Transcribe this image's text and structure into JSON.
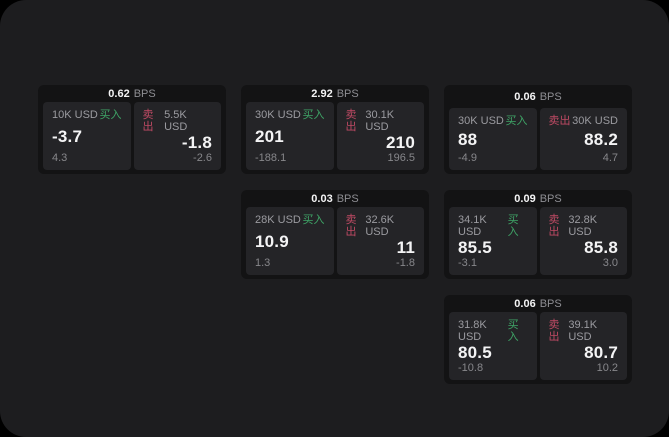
{
  "page": {
    "background": "#000000",
    "surface": "#1d1d1f"
  },
  "colors": {
    "card_bg": "#131314",
    "panel_bg": "#242427",
    "text_primary": "#f4f4f5",
    "text_muted": "#9b9ba0",
    "buy_green": "#3fa567",
    "sell_red": "#bf4a64"
  },
  "labels": {
    "bps": "BPS",
    "buy": "买入",
    "sell": "卖出"
  },
  "cards": [
    {
      "bps": "0.62",
      "col": 1,
      "row": 1,
      "buy": {
        "amount": "10K USD",
        "value": "-3.7",
        "delta": "4.3"
      },
      "sell": {
        "amount": "5.5K USD",
        "value": "-1.8",
        "delta": "-2.6"
      }
    },
    {
      "bps": "2.92",
      "col": 2,
      "row": 1,
      "buy": {
        "amount": "30K USD",
        "value": "201",
        "delta": "-188.1"
      },
      "sell": {
        "amount": "30.1K USD",
        "value": "210",
        "delta": "196.5"
      }
    },
    {
      "bps": "0.06",
      "col": 3,
      "row": 1,
      "buy": {
        "amount": "30K USD",
        "value": "88",
        "delta": "-4.9"
      },
      "sell": {
        "amount": "30K USD",
        "value": "88.2",
        "delta": "4.7"
      }
    },
    {
      "bps": "0.03",
      "col": 2,
      "row": 2,
      "buy": {
        "amount": "28K USD",
        "value": "10.9",
        "delta": "1.3"
      },
      "sell": {
        "amount": "32.6K USD",
        "value": "11",
        "delta": "-1.8"
      }
    },
    {
      "bps": "0.09",
      "col": 3,
      "row": 2,
      "buy": {
        "amount": "34.1K USD",
        "value": "85.5",
        "delta": "-3.1"
      },
      "sell": {
        "amount": "32.8K USD",
        "value": "85.8",
        "delta": "3.0"
      }
    },
    {
      "bps": "0.06",
      "col": 3,
      "row": 3,
      "buy": {
        "amount": "31.8K USD",
        "value": "80.5",
        "delta": "-10.8"
      },
      "sell": {
        "amount": "39.1K USD",
        "value": "80.7",
        "delta": "10.2"
      }
    }
  ]
}
